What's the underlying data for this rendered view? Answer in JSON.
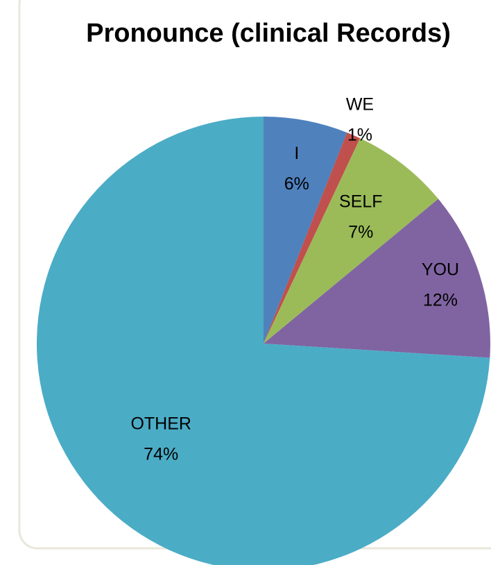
{
  "chart_data": {
    "type": "pie",
    "title": "Pronounce (clinical Records)",
    "categories": [
      "I",
      "WE",
      "SELF",
      "YOU",
      "OTHER"
    ],
    "values": [
      6,
      1,
      7,
      12,
      74
    ],
    "value_labels": [
      "6%",
      "1%",
      "7%",
      "12%",
      "74%"
    ],
    "colors": [
      "#4f81bd",
      "#c0504d",
      "#9bbb59",
      "#8064a2",
      "#4bacc6"
    ]
  }
}
